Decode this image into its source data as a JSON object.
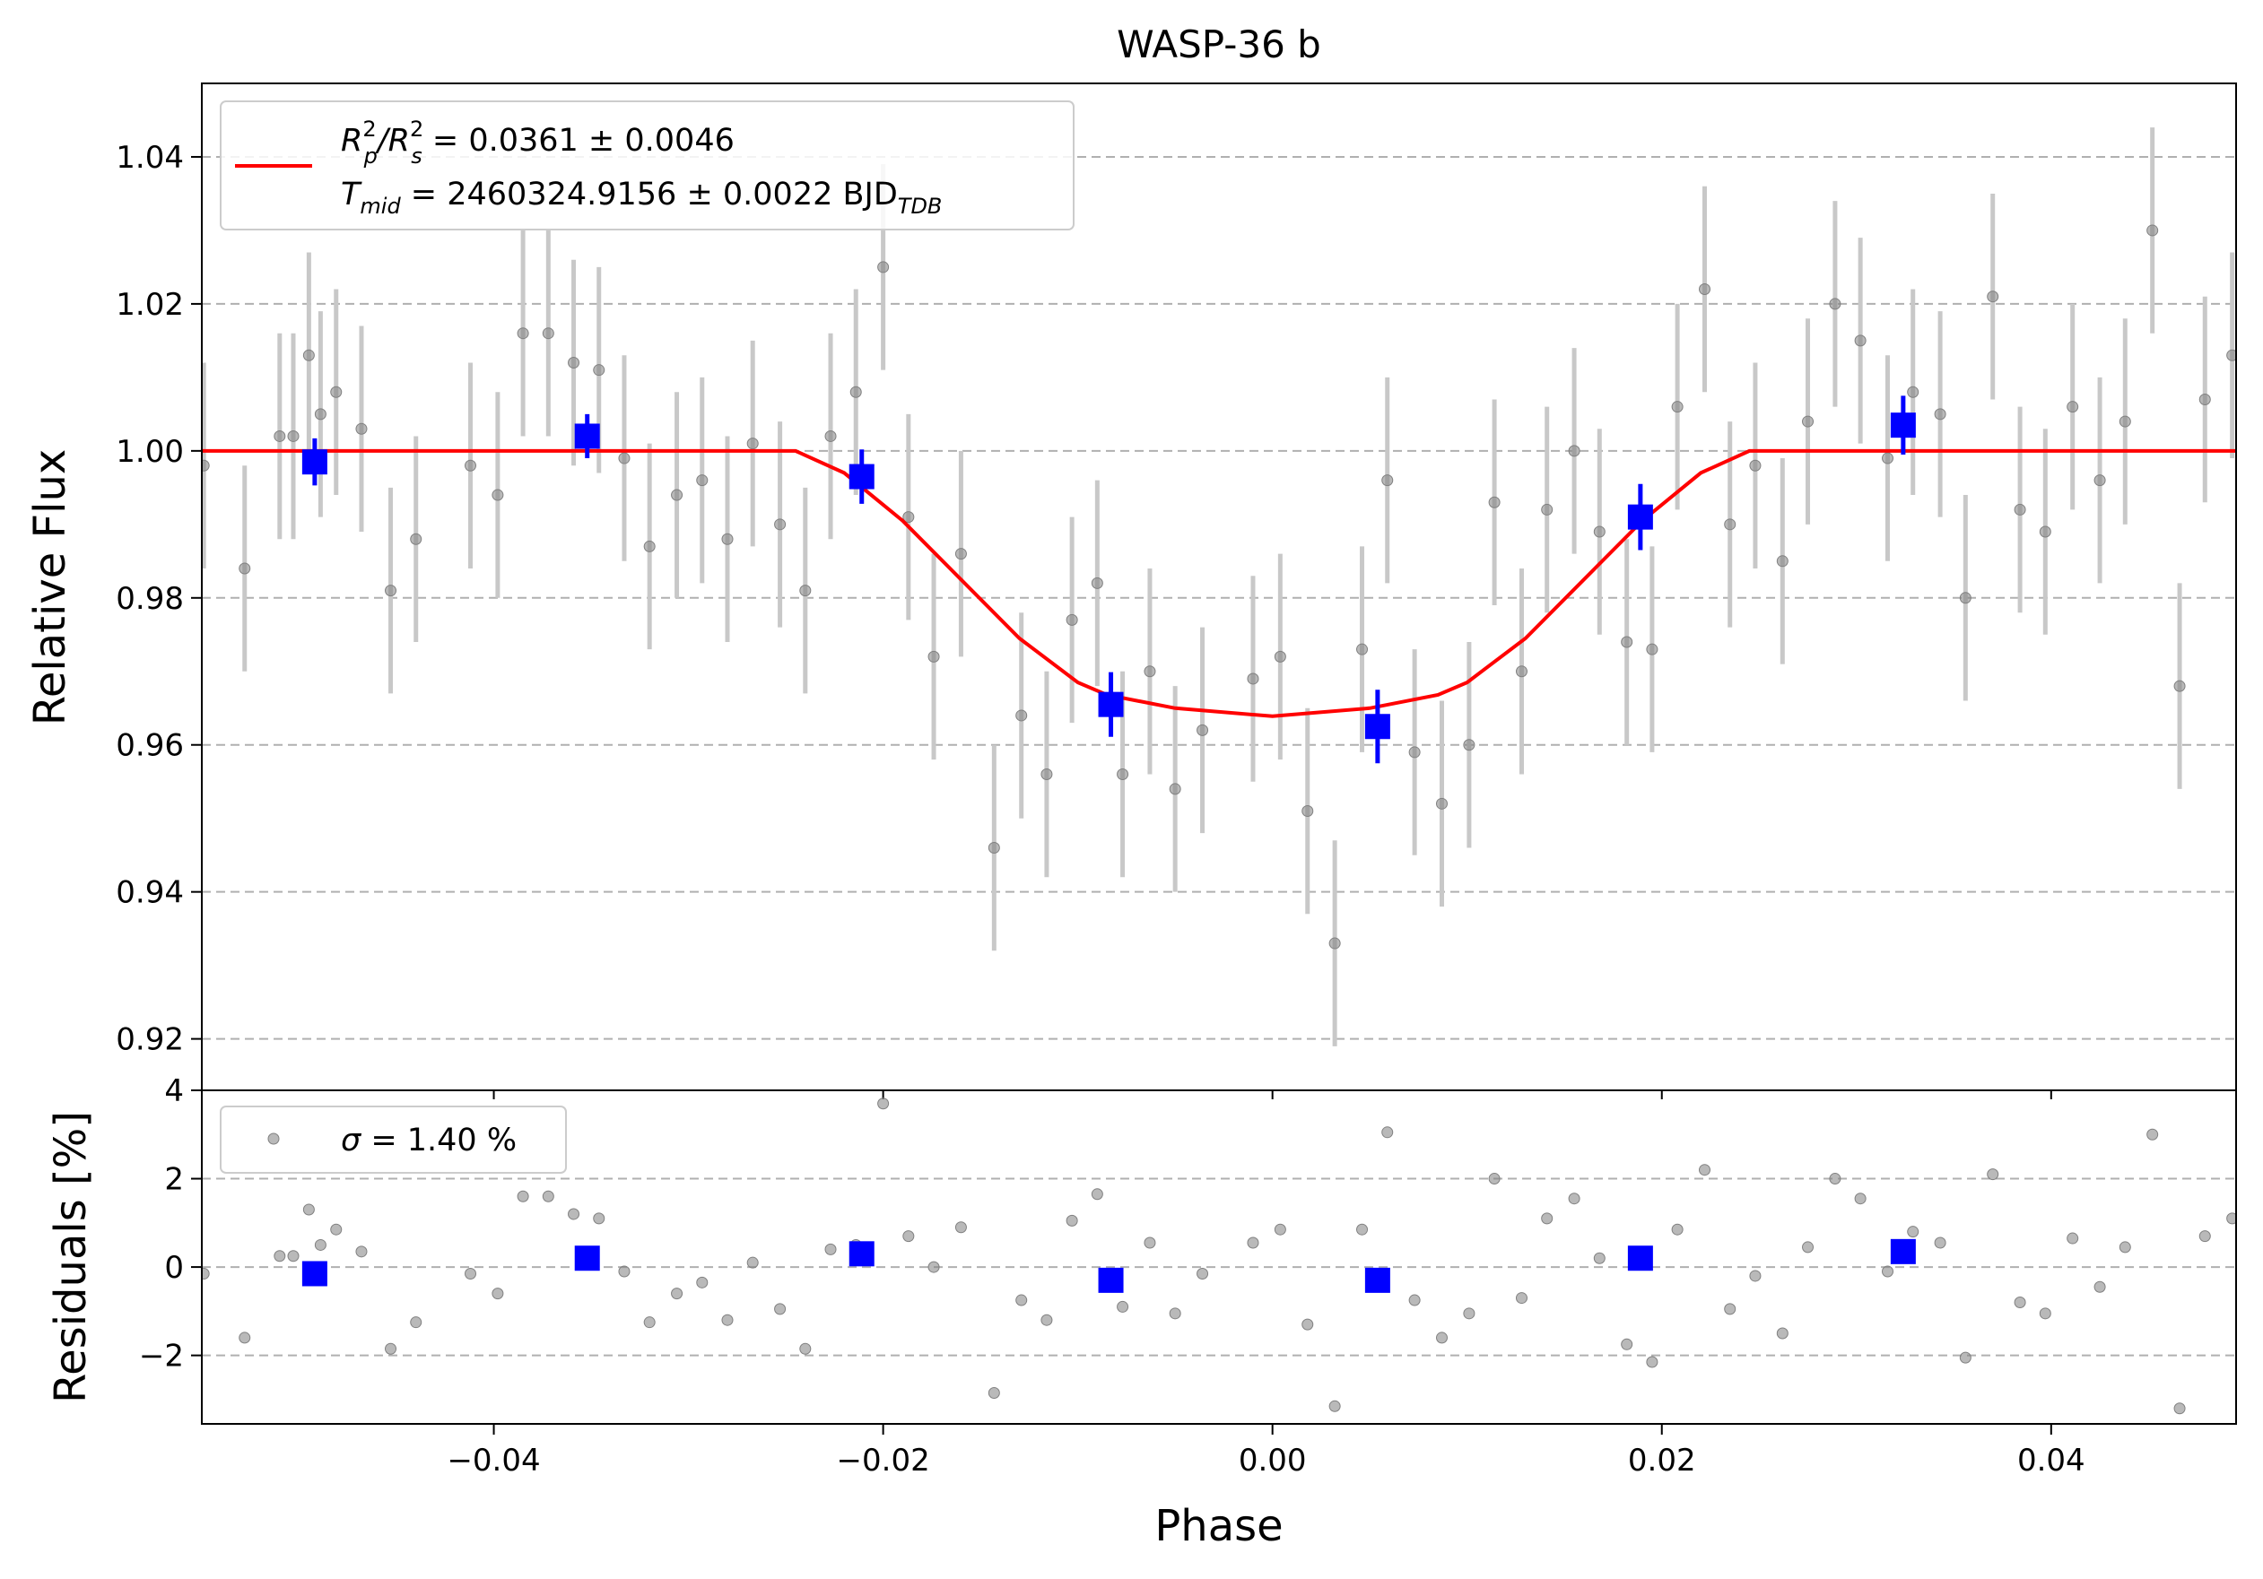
{
  "chart_data": [
    {
      "type": "scatter",
      "panel": "light-curve",
      "title": "WASP-36 b",
      "xlabel": "",
      "ylabel": "Relative Flux",
      "xlim": [
        -0.055,
        0.0495
      ],
      "ylim": [
        0.913,
        1.05
      ],
      "yticks": [
        0.92,
        0.94,
        0.96,
        0.98,
        1.0,
        1.02,
        1.04
      ],
      "ytick_labels": [
        "0.92",
        "0.94",
        "0.96",
        "0.98",
        "1.00",
        "1.02",
        "1.04"
      ],
      "grid": "horizontal dashed",
      "legend_position": "top-left",
      "legend": {
        "line1_lhs_main": "R",
        "line1_lhs_sup1": "2",
        "line1_lhs_sub1": "p",
        "line1_slash": "/R",
        "line1_lhs_sup2": "2",
        "line1_lhs_sub2": "s",
        "line1_rhs": " = 0.0361 ± 0.0046",
        "line2_lhs_main": "T",
        "line2_lhs_sub": "mid",
        "line2_rhs": " = 2460324.9156 ± 0.0022 BJD",
        "line2_unit_sub": "TDB"
      },
      "series": [
        {
          "kind": "raw",
          "color": "#808080",
          "errcolor": "#c8c8c8",
          "error": 0.014,
          "x": [
            -0.0549,
            -0.0528,
            -0.051,
            -0.0503,
            -0.0495,
            -0.0489,
            -0.0481,
            -0.0468,
            -0.0453,
            -0.044,
            -0.0412,
            -0.0398,
            -0.0385,
            -0.0372,
            -0.0359,
            -0.0346,
            -0.0333,
            -0.032,
            -0.0306,
            -0.0293,
            -0.028,
            -0.0267,
            -0.0253,
            -0.024,
            -0.0227,
            -0.0214,
            -0.02,
            -0.0187,
            -0.0174,
            -0.016,
            -0.0143,
            -0.0129,
            -0.0116,
            -0.0103,
            -0.009,
            -0.0077,
            -0.0063,
            -0.005,
            -0.0036,
            -0.001,
            0.0004,
            0.0018,
            0.0032,
            0.0046,
            0.0059,
            0.0073,
            0.0087,
            0.0101,
            0.0114,
            0.0128,
            0.0141,
            0.0155,
            0.0168,
            0.0182,
            0.0195,
            0.0208,
            0.0222,
            0.0235,
            0.0248,
            0.0262,
            0.0275,
            0.0289,
            0.0302,
            0.0316,
            0.0329,
            0.0343,
            0.0356,
            0.037,
            0.0384,
            0.0397,
            0.0411,
            0.0425,
            0.0438,
            0.0452,
            0.0466,
            0.0479,
            0.0493
          ],
          "y": [
            0.998,
            0.984,
            1.002,
            1.002,
            1.013,
            1.005,
            1.008,
            1.003,
            0.981,
            0.988,
            0.998,
            0.994,
            1.016,
            1.016,
            1.012,
            1.011,
            0.999,
            0.987,
            0.994,
            0.996,
            0.988,
            1.001,
            0.99,
            0.981,
            1.002,
            1.008,
            1.025,
            0.991,
            0.972,
            0.986,
            0.946,
            0.964,
            0.956,
            0.977,
            0.982,
            0.956,
            0.97,
            0.954,
            0.962,
            0.969,
            0.972,
            0.951,
            0.933,
            0.973,
            0.996,
            0.959,
            0.952,
            0.96,
            0.993,
            0.97,
            0.992,
            1.0,
            0.989,
            0.974,
            0.973,
            1.006,
            1.022,
            0.99,
            0.998,
            0.985,
            1.004,
            1.02,
            1.015,
            0.999,
            1.008,
            1.005,
            0.98,
            1.021,
            0.992,
            0.989,
            1.006,
            0.996,
            1.004,
            1.03,
            0.968,
            1.007,
            1.013
          ]
        },
        {
          "kind": "binned",
          "color": "#0000ff",
          "x": [
            -0.0492,
            -0.0352,
            -0.0211,
            -0.0083,
            0.0054,
            0.0189,
            0.0324
          ],
          "y": [
            0.9985,
            1.002,
            0.9965,
            0.9655,
            0.9625,
            0.991,
            1.0035
          ],
          "yerr": [
            0.0032,
            0.003,
            0.0037,
            0.0044,
            0.005,
            0.0045,
            0.004
          ]
        },
        {
          "kind": "model",
          "color": "#ff0000",
          "x": [
            -0.055,
            -0.0245,
            -0.022,
            -0.019,
            -0.016,
            -0.013,
            -0.01,
            -0.0085,
            -0.005,
            0.0,
            0.005,
            0.0085,
            0.01,
            0.013,
            0.016,
            0.019,
            0.022,
            0.0245,
            0.0495
          ],
          "y": [
            1.0,
            1.0,
            0.997,
            0.9905,
            0.9825,
            0.9745,
            0.9685,
            0.9668,
            0.965,
            0.9639,
            0.965,
            0.9668,
            0.9685,
            0.9745,
            0.9825,
            0.9905,
            0.997,
            1.0,
            1.0
          ]
        }
      ]
    },
    {
      "type": "scatter",
      "panel": "residuals",
      "xlabel": "Phase",
      "ylabel": "Residuals [%]",
      "xlim": [
        -0.055,
        0.0495
      ],
      "ylim": [
        -3.55,
        4.0
      ],
      "xticks": [
        -0.04,
        -0.02,
        0.0,
        0.02,
        0.04
      ],
      "xtick_labels": [
        "−0.04",
        "−0.02",
        "0.00",
        "0.02",
        "0.04"
      ],
      "yticks": [
        -2,
        0,
        2,
        4
      ],
      "ytick_labels": [
        "−2",
        "0",
        "2",
        "4"
      ],
      "grid": "horizontal dashed",
      "legend_position": "top-left",
      "legend": {
        "sigma_symbol": "σ",
        "sigma_text": " = 1.40 %"
      },
      "series": [
        {
          "kind": "raw",
          "color": "#808080",
          "x": [
            -0.0549,
            -0.0528,
            -0.051,
            -0.0503,
            -0.0495,
            -0.0489,
            -0.0481,
            -0.0468,
            -0.0453,
            -0.044,
            -0.0412,
            -0.0398,
            -0.0385,
            -0.0372,
            -0.0359,
            -0.0346,
            -0.0333,
            -0.032,
            -0.0306,
            -0.0293,
            -0.028,
            -0.0267,
            -0.0253,
            -0.024,
            -0.0227,
            -0.0214,
            -0.02,
            -0.0187,
            -0.0174,
            -0.016,
            -0.0143,
            -0.0129,
            -0.0116,
            -0.0103,
            -0.009,
            -0.0077,
            -0.0063,
            -0.005,
            -0.0036,
            -0.001,
            0.0004,
            0.0018,
            0.0032,
            0.0046,
            0.0059,
            0.0073,
            0.0087,
            0.0101,
            0.0114,
            0.0128,
            0.0141,
            0.0155,
            0.0168,
            0.0182,
            0.0195,
            0.0208,
            0.0222,
            0.0235,
            0.0248,
            0.0262,
            0.0275,
            0.0289,
            0.0302,
            0.0316,
            0.0329,
            0.0343,
            0.0356,
            0.037,
            0.0384,
            0.0397,
            0.0411,
            0.0425,
            0.0438,
            0.0452,
            0.0466,
            0.0479,
            0.0493
          ],
          "y": [
            -0.15,
            -1.6,
            0.25,
            0.25,
            1.3,
            0.5,
            0.85,
            0.35,
            -1.85,
            -1.25,
            -0.15,
            -0.6,
            1.6,
            1.6,
            1.2,
            1.1,
            -0.1,
            -1.25,
            -0.6,
            -0.35,
            -1.2,
            0.1,
            -0.95,
            -1.85,
            0.4,
            0.5,
            3.7,
            0.7,
            0.0,
            0.9,
            -2.85,
            -0.75,
            -1.2,
            1.05,
            1.65,
            -0.9,
            0.55,
            -1.05,
            -0.15,
            0.55,
            0.85,
            -1.3,
            -3.15,
            0.85,
            3.05,
            -0.75,
            -1.6,
            -1.05,
            2.0,
            -0.7,
            1.1,
            1.55,
            0.2,
            -1.75,
            -2.15,
            0.85,
            2.2,
            -0.95,
            -0.2,
            -1.5,
            0.45,
            2.0,
            1.55,
            -0.1,
            0.8,
            0.55,
            -2.05,
            2.1,
            -0.8,
            -1.05,
            0.65,
            -0.45,
            0.45,
            3.0,
            -3.2,
            0.7,
            1.1
          ]
        },
        {
          "kind": "binned",
          "color": "#0000ff",
          "x": [
            -0.0492,
            -0.0352,
            -0.0211,
            -0.0083,
            0.0054,
            0.0189,
            0.0324
          ],
          "y": [
            -0.15,
            0.2,
            0.3,
            -0.3,
            -0.3,
            0.2,
            0.35
          ]
        }
      ]
    }
  ]
}
